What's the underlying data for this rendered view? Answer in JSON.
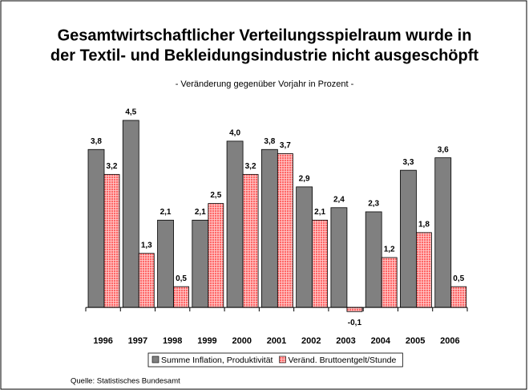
{
  "chart_data": {
    "type": "bar",
    "title": [
      "Gesamtwirtschaftlicher Verteilungsspielraum wurde in",
      "der Textil- und Bekleidungsindustrie nicht ausgeschöpft"
    ],
    "subtitle": "- Veränderung gegenüber Vorjahr in Prozent -",
    "categories": [
      "1996",
      "1997",
      "1998",
      "1999",
      "2000",
      "2001",
      "2002",
      "2003",
      "2004",
      "2005",
      "2006"
    ],
    "series": [
      {
        "name": "Summe Inflation, Produktivität",
        "color": "#808080",
        "values": [
          3.8,
          4.5,
          2.1,
          2.1,
          4.0,
          3.8,
          2.9,
          2.4,
          2.3,
          3.3,
          3.6
        ],
        "value_labels": [
          "3,8",
          "4,5",
          "2,1",
          "2,1",
          "4,0",
          "3,8",
          "2,9",
          "2,4",
          "2,3",
          "3,3",
          "3,6"
        ]
      },
      {
        "name": "Veränd. Bruttoentgelt/Stunde",
        "color": "#ff6666",
        "values": [
          3.2,
          1.3,
          0.5,
          2.5,
          3.2,
          3.7,
          2.1,
          -0.1,
          1.2,
          1.8,
          0.5
        ],
        "value_labels": [
          "3,2",
          "1,3",
          "0,5",
          "2,5",
          "3,2",
          "3,7",
          "2,1",
          "-0,1",
          "1,2",
          "1,8",
          "0,5"
        ]
      }
    ],
    "ylim": [
      -0.5,
      4.5
    ],
    "source": "Quelle: Statistisches Bundesamt"
  }
}
